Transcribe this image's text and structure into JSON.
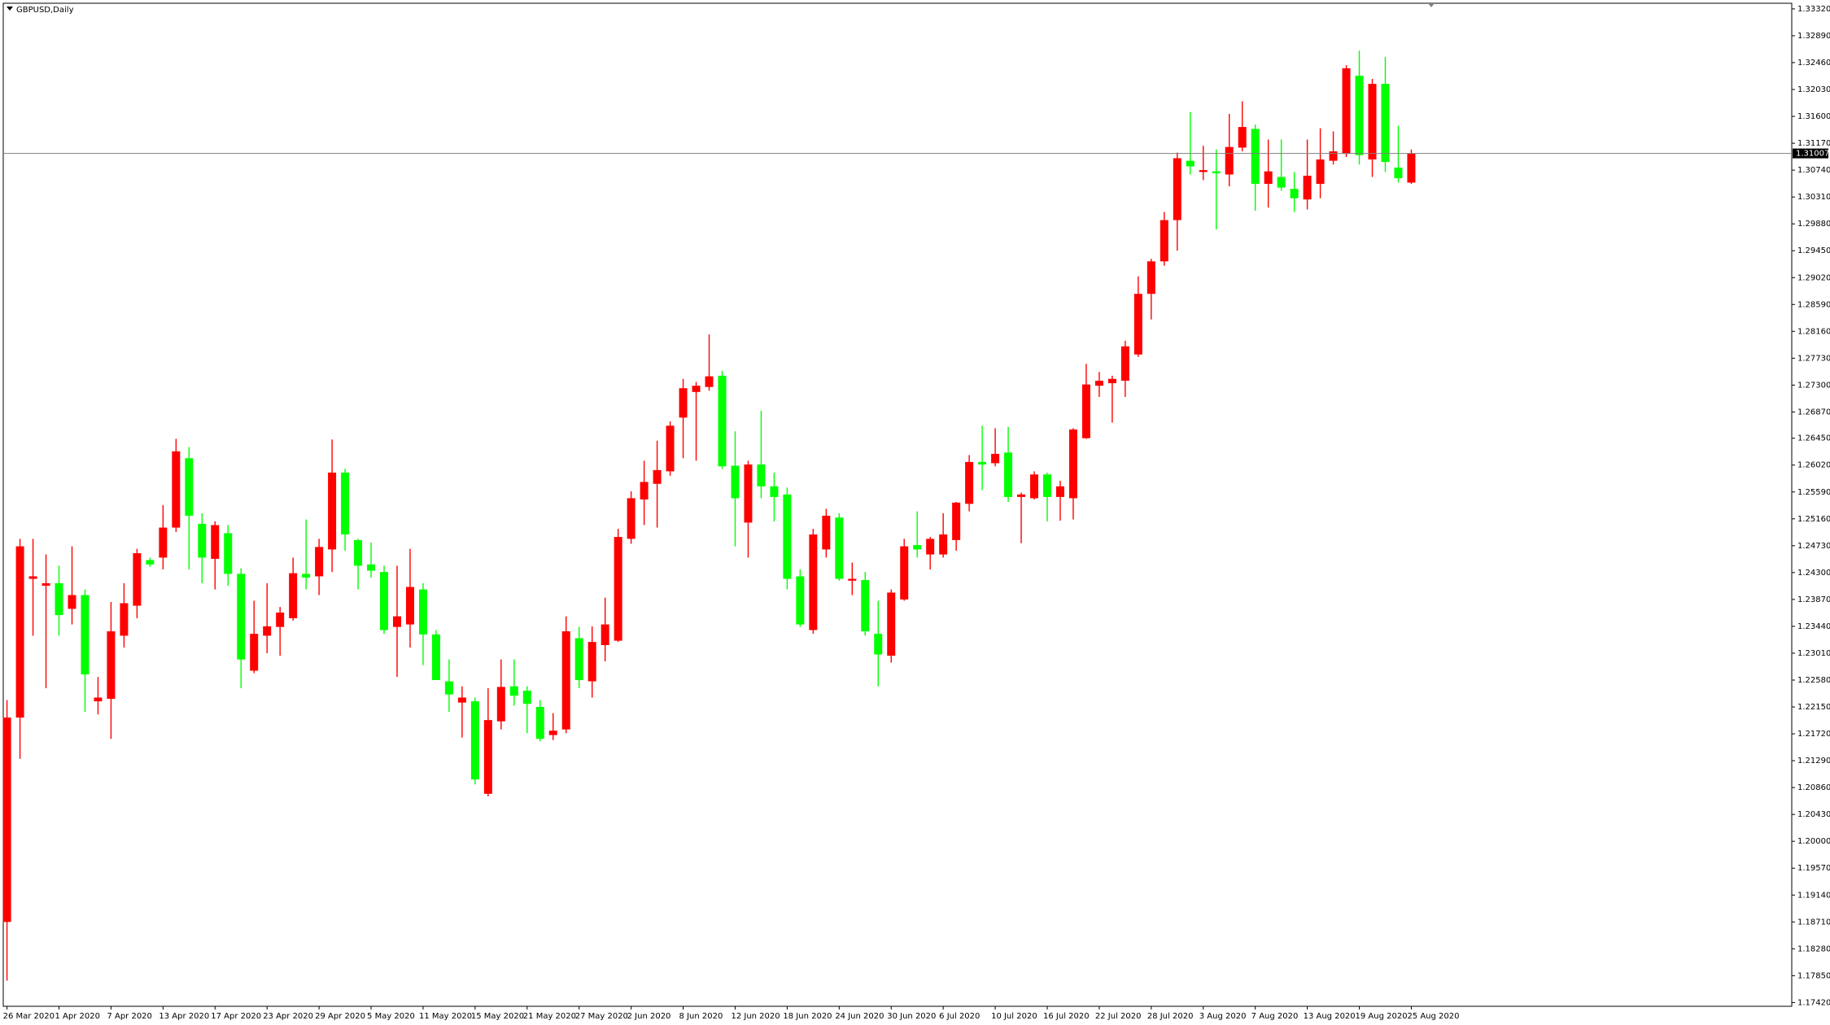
{
  "chart_data": {
    "type": "candlestick",
    "title": "GBPUSD,Daily",
    "up_color": "#ff0000",
    "down_color": "#00ff00",
    "last_price": 1.31007,
    "categories": [
      "26 Mar 2020",
      null,
      null,
      null,
      "1 Apr 2020",
      null,
      null,
      null,
      "7 Apr 2020",
      null,
      null,
      null,
      "13 Apr 2020",
      null,
      null,
      null,
      "17 Apr 2020",
      null,
      null,
      null,
      "23 Apr 2020",
      null,
      null,
      null,
      "29 Apr 2020",
      null,
      null,
      null,
      "5 May 2020",
      null,
      null,
      null,
      "11 May 2020",
      null,
      null,
      null,
      "15 May 2020",
      null,
      null,
      null,
      "21 May 2020",
      null,
      null,
      null,
      "27 May 2020",
      null,
      null,
      null,
      "2 Jun 2020",
      null,
      null,
      null,
      "8 Jun 2020",
      null,
      null,
      null,
      "12 Jun 2020",
      null,
      null,
      null,
      "18 Jun 2020",
      null,
      null,
      null,
      "24 Jun 2020",
      null,
      null,
      null,
      "30 Jun 2020",
      null,
      null,
      null,
      "6 Jul 2020",
      null,
      null,
      null,
      "10 Jul 2020",
      null,
      null,
      null,
      "16 Jul 2020",
      null,
      null,
      null,
      "22 Jul 2020",
      null,
      null,
      null,
      "28 Jul 2020",
      null,
      null,
      null,
      "3 Aug 2020",
      null,
      null,
      null,
      "7 Aug 2020",
      null,
      null,
      null,
      "13 Aug 2020",
      null,
      null,
      null,
      "19 Aug 2020",
      null,
      null,
      null,
      "25 Aug 2020"
    ],
    "open": [
      1.1871,
      1.2198,
      1.242,
      1.2409,
      1.2413,
      1.2372,
      1.2394,
      1.2224,
      1.2228,
      1.2329,
      1.2377,
      1.245,
      1.2454,
      1.2502,
      1.2613,
      1.2508,
      1.2452,
      1.2493,
      1.2428,
      1.2273,
      1.2329,
      1.2343,
      1.2357,
      1.2428,
      1.2424,
      1.2467,
      1.259,
      1.2482,
      1.2443,
      1.2431,
      1.2343,
      1.2347,
      1.2403,
      1.2331,
      1.2256,
      1.2222,
      1.2224,
      1.2076,
      1.2192,
      1.2248,
      1.2241,
      1.2215,
      1.217,
      1.2179,
      1.2325,
      1.2256,
      1.2314,
      1.2321,
      1.2484,
      1.2547,
      1.2572,
      1.2592,
      1.2678,
      1.2719,
      1.2727,
      1.2745,
      1.2601,
      1.251,
      1.2603,
      1.2568,
      1.2555,
      1.2424,
      1.2338,
      1.2467,
      1.2518,
      1.2417,
      1.2418,
      1.2332,
      1.2297,
      1.2387,
      1.2474,
      1.2459,
      1.2459,
      1.2482,
      1.254,
      1.2607,
      1.2605,
      1.2622,
      1.2551,
      1.2549,
      1.2587,
      1.2551,
      1.2549,
      1.2645,
      1.2729,
      1.2733,
      1.2737,
      1.2779,
      1.2876,
      1.2928,
      1.2994,
      1.3089,
      1.3071,
      1.3072,
      1.3067,
      1.311,
      1.314,
      1.3052,
      1.3063,
      1.3044,
      1.3027,
      1.3052,
      1.3089,
      1.31,
      1.3225,
      1.3091,
      1.3212,
      1.3078,
      1.3054
    ],
    "high": [
      1.2226,
      1.2484,
      1.2484,
      1.2459,
      1.2441,
      1.2472,
      1.2403,
      1.2263,
      1.2383,
      1.2413,
      1.2468,
      1.2454,
      1.2538,
      1.2644,
      1.2631,
      1.2525,
      1.2512,
      1.2506,
      1.2437,
      1.2385,
      1.2413,
      1.2375,
      1.2454,
      1.2515,
      1.2484,
      1.2643,
      1.2596,
      1.2484,
      1.2478,
      1.2441,
      1.2441,
      1.2468,
      1.2413,
      1.2338,
      1.2291,
      1.2248,
      1.223,
      1.2245,
      1.2291,
      1.2291,
      1.2248,
      1.2226,
      1.2205,
      1.236,
      1.2343,
      1.2344,
      1.239,
      1.25,
      1.256,
      1.2609,
      1.2641,
      1.2672,
      1.274,
      1.2735,
      1.2811,
      1.2753,
      1.2656,
      1.2609,
      1.2689,
      1.259,
      1.2566,
      1.2435,
      1.25,
      1.2532,
      1.2525,
      1.2446,
      1.2431,
      1.2385,
      1.2403,
      1.2484,
      1.2528,
      1.2487,
      1.2525,
      1.2543,
      1.2618,
      1.2665,
      1.2661,
      1.2663,
      1.2558,
      1.2592,
      1.259,
      1.2577,
      1.2661,
      1.2764,
      1.2751,
      1.2745,
      1.2801,
      1.2904,
      1.2932,
      1.3007,
      1.3102,
      1.3167,
      1.3113,
      1.3107,
      1.3164,
      1.3184,
      1.3147,
      1.3123,
      1.3123,
      1.3071,
      1.3123,
      1.3141,
      1.3136,
      1.3242,
      1.3265,
      1.322,
      1.3255,
      1.3145,
      1.3107
    ],
    "low": [
      1.1777,
      1.2132,
      1.2329,
      1.2245,
      1.2329,
      1.2347,
      1.2207,
      1.2203,
      1.2164,
      1.231,
      1.2357,
      1.2439,
      1.2435,
      1.2495,
      1.2435,
      1.2413,
      1.2403,
      1.2409,
      1.2245,
      1.2269,
      1.2301,
      1.2297,
      1.2353,
      1.2403,
      1.2394,
      1.2431,
      1.2465,
      1.2403,
      1.2422,
      1.2332,
      1.2263,
      1.231,
      1.2282,
      1.2258,
      1.2207,
      1.2166,
      1.2091,
      1.2072,
      1.2179,
      1.2217,
      1.2173,
      1.216,
      1.2162,
      1.2173,
      1.2245,
      1.223,
      1.2288,
      1.2319,
      1.2476,
      1.2506,
      1.2502,
      1.2585,
      1.2613,
      1.2609,
      1.2721,
      1.2596,
      1.2472,
      1.2454,
      1.2549,
      1.2512,
      1.2403,
      1.2343,
      1.2332,
      1.2454,
      1.2417,
      1.2394,
      1.2329,
      1.2248,
      1.2286,
      1.2385,
      1.2454,
      1.2435,
      1.2454,
      1.2465,
      1.2528,
      1.2562,
      1.26,
      1.2543,
      1.2477,
      1.2547,
      1.2512,
      1.2513,
      1.2515,
      1.2644,
      1.2711,
      1.267,
      1.2711,
      1.2775,
      1.2835,
      1.2921,
      1.2945,
      1.3067,
      1.3058,
      1.2979,
      1.3048,
      1.3104,
      1.3009,
      1.3014,
      1.3041,
      1.3007,
      1.3011,
      1.3029,
      1.3083,
      1.3095,
      1.3083,
      1.3063,
      1.3071,
      1.3054,
      1.3052
    ],
    "close": [
      1.2198,
      1.2472,
      1.2424,
      1.2413,
      1.2362,
      1.2394,
      1.2267,
      1.223,
      1.2336,
      1.2381,
      1.2461,
      1.2443,
      1.2502,
      1.2624,
      1.2521,
      1.2454,
      1.2506,
      1.2428,
      1.2291,
      1.2332,
      1.2344,
      1.2366,
      1.2429,
      1.2422,
      1.2471,
      1.259,
      1.2491,
      1.2441,
      1.2433,
      1.2338,
      1.236,
      1.2407,
      1.2331,
      1.2258,
      1.2235,
      1.223,
      1.2099,
      1.2194,
      1.2247,
      1.2233,
      1.222,
      1.2164,
      1.2177,
      1.2336,
      1.2258,
      1.2319,
      1.2347,
      1.2487,
      1.2549,
      1.2575,
      1.2594,
      1.2665,
      1.2725,
      1.2729,
      1.2744,
      1.26,
      1.2549,
      1.2603,
      1.2568,
      1.2551,
      1.242,
      1.2347,
      1.2491,
      1.2521,
      1.242,
      1.242,
      1.2336,
      1.2299,
      1.2398,
      1.2472,
      1.2467,
      1.2484,
      1.2491,
      1.2542,
      1.2607,
      1.2603,
      1.262,
      1.2551,
      1.2555,
      1.2587,
      1.2551,
      1.2568,
      1.2659,
      1.2731,
      1.2737,
      1.274,
      1.2792,
      1.2876,
      1.2928,
      1.2994,
      1.3093,
      1.308,
      1.3074,
      1.3069,
      1.3111,
      1.3143,
      1.3052,
      1.3072,
      1.3046,
      1.3029,
      1.3065,
      1.3091,
      1.3104,
      1.3237,
      1.3098,
      1.3212,
      1.3087,
      1.3061,
      1.31007
    ],
    "ylim": [
      1.1736,
      1.3341
    ],
    "yticks": [
      {
        "value": 1.3332,
        "label": "1.33320"
      },
      {
        "value": 1.3289,
        "label": "1.32890"
      },
      {
        "value": 1.3246,
        "label": "1.32460"
      },
      {
        "value": 1.3203,
        "label": "1.32030"
      },
      {
        "value": 1.316,
        "label": "1.31600"
      },
      {
        "value": 1.3117,
        "label": "1.31170"
      },
      {
        "value": 1.3074,
        "label": "1.30740"
      },
      {
        "value": 1.3031,
        "label": "1.30310"
      },
      {
        "value": 1.2988,
        "label": "1.29880"
      },
      {
        "value": 1.2945,
        "label": "1.29450"
      },
      {
        "value": 1.2902,
        "label": "1.29020"
      },
      {
        "value": 1.2859,
        "label": "1.28590"
      },
      {
        "value": 1.2816,
        "label": "1.28160"
      },
      {
        "value": 1.2773,
        "label": "1.27730"
      },
      {
        "value": 1.273,
        "label": "1.27300"
      },
      {
        "value": 1.2687,
        "label": "1.26870"
      },
      {
        "value": 1.2645,
        "label": "1.26450"
      },
      {
        "value": 1.2602,
        "label": "1.26020"
      },
      {
        "value": 1.2559,
        "label": "1.25590"
      },
      {
        "value": 1.2516,
        "label": "1.25160"
      },
      {
        "value": 1.2473,
        "label": "1.24730"
      },
      {
        "value": 1.243,
        "label": "1.24300"
      },
      {
        "value": 1.2387,
        "label": "1.23870"
      },
      {
        "value": 1.2344,
        "label": "1.23440"
      },
      {
        "value": 1.2301,
        "label": "1.23010"
      },
      {
        "value": 1.2258,
        "label": "1.22580"
      },
      {
        "value": 1.2215,
        "label": "1.22150"
      },
      {
        "value": 1.2172,
        "label": "1.21720"
      },
      {
        "value": 1.2129,
        "label": "1.21290"
      },
      {
        "value": 1.2086,
        "label": "1.20860"
      },
      {
        "value": 1.2043,
        "label": "1.20430"
      },
      {
        "value": 1.2,
        "label": "1.20000"
      },
      {
        "value": 1.1957,
        "label": "1.19570"
      },
      {
        "value": 1.1914,
        "label": "1.19140"
      },
      {
        "value": 1.1871,
        "label": "1.18710"
      },
      {
        "value": 1.1828,
        "label": "1.18280"
      },
      {
        "value": 1.1785,
        "label": "1.17850"
      },
      {
        "value": 1.1742,
        "label": "1.17420"
      }
    ],
    "grid": false
  }
}
